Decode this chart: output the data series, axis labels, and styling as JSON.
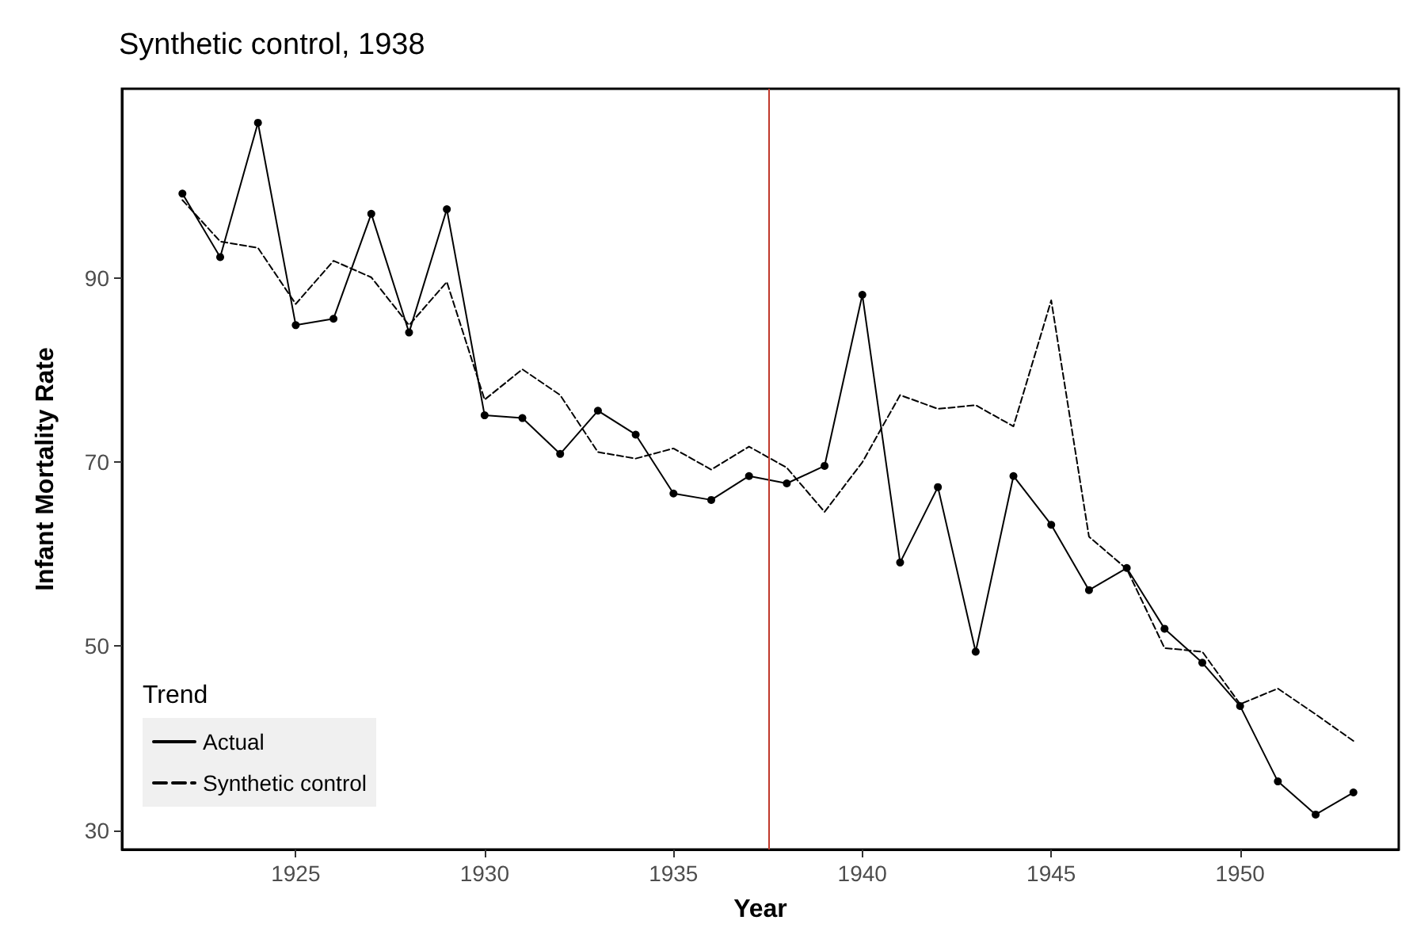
{
  "chart_data": {
    "type": "line",
    "title": "Synthetic control, 1938",
    "xlabel": "Year",
    "ylabel": "Infant Mortality Rate",
    "legend_title": "Trend",
    "x": [
      1922,
      1923,
      1924,
      1925,
      1926,
      1927,
      1928,
      1929,
      1930,
      1931,
      1932,
      1933,
      1934,
      1935,
      1936,
      1937,
      1938,
      1939,
      1940,
      1941,
      1942,
      1943,
      1944,
      1945,
      1946,
      1947,
      1948,
      1949,
      1950,
      1951,
      1952,
      1953
    ],
    "series": [
      {
        "name": "Actual",
        "color": "#000000",
        "marker": "circle",
        "line_style": "solid",
        "values": [
          99.2,
          92.3,
          106.9,
          84.9,
          85.6,
          97.0,
          84.1,
          97.5,
          75.1,
          74.8,
          70.9,
          75.6,
          73.0,
          66.6,
          65.9,
          68.5,
          67.7,
          69.6,
          88.2,
          59.1,
          67.3,
          49.4,
          68.5,
          63.2,
          56.1,
          58.5,
          51.9,
          48.2,
          43.5,
          35.3,
          31.7,
          34.1
        ]
      },
      {
        "name": "Synthetic control",
        "color": "#000000",
        "marker": "none",
        "line_style": "dashed",
        "values": [
          98.5,
          94.0,
          93.3,
          87.2,
          91.9,
          90.1,
          84.9,
          89.6,
          76.8,
          80.1,
          77.3,
          71.1,
          70.4,
          71.5,
          69.2,
          71.7,
          69.4,
          64.6,
          70.0,
          77.3,
          75.8,
          76.2,
          73.9,
          87.6,
          61.9,
          58.4,
          49.8,
          49.4,
          43.7,
          45.4,
          42.6,
          39.7
        ]
      }
    ],
    "xlim": [
      1920.4,
      1954.2
    ],
    "xticks": [
      1925,
      1930,
      1935,
      1940,
      1945,
      1950
    ],
    "ylim": [
      27.9,
      110.6
    ],
    "yticks": [
      30,
      50,
      70,
      90
    ],
    "ref_lines": [
      {
        "axis": "x",
        "value": 1937.5,
        "color": "#c0392b"
      }
    ],
    "grid": false,
    "legend": "bottom left"
  }
}
